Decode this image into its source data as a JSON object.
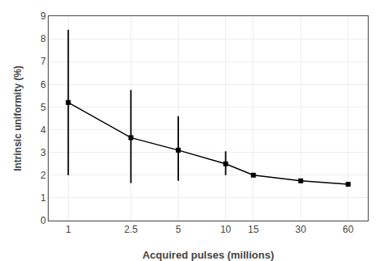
{
  "chart_data": {
    "type": "line",
    "xlabel": "Acquired pulses (millions)",
    "ylabel": "Intrinsic uniformity (%)",
    "x": [
      1,
      2.5,
      5,
      10,
      15,
      30,
      60
    ],
    "values": [
      5.2,
      3.65,
      3.1,
      2.5,
      2.0,
      1.75,
      1.6
    ],
    "err_upper": [
      8.4,
      5.75,
      4.6,
      3.05,
      null,
      null,
      null
    ],
    "err_lower": [
      2.0,
      1.65,
      1.75,
      2.0,
      null,
      null,
      null
    ],
    "log": "x",
    "xlim": [
      0.75,
      80
    ],
    "xticks": [
      1,
      2.5,
      5,
      10,
      15,
      30,
      60
    ],
    "ylim": [
      0,
      9
    ],
    "yticks": [
      0,
      1,
      2,
      3,
      4,
      5,
      6,
      7,
      8,
      9
    ],
    "color": "#000000",
    "marker": "square",
    "line_style": "solid",
    "grid": true
  }
}
